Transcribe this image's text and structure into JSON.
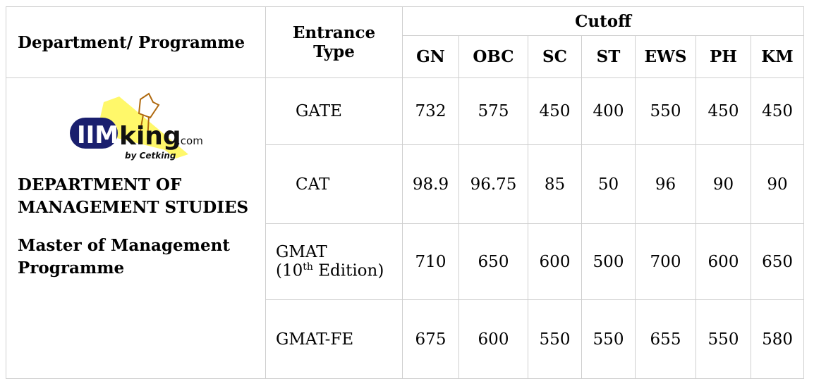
{
  "headers": {
    "department": "Department/ Programme",
    "entrance_type": "Entrance Type",
    "cutoff": "Cutoff",
    "categories": [
      "GN",
      "OBC",
      "SC",
      "ST",
      "EWS",
      "PH",
      "KM"
    ]
  },
  "logo": {
    "brand": "IIMking.com",
    "tagline": "by Cetking",
    "colors": {
      "navy": "#1a1f6e",
      "yellow": "#fff86a",
      "brown": "#b06a10"
    }
  },
  "department": {
    "name": "DEPARTMENT OF MANAGEMENT STUDIES",
    "programme": "Master of Management Programme"
  },
  "rows": [
    {
      "type": "GATE",
      "values": [
        "732",
        "575",
        "450",
        "400",
        "550",
        "450",
        "450"
      ]
    },
    {
      "type": "CAT",
      "values": [
        "98.9",
        "96.75",
        "85",
        "50",
        "96",
        "90",
        "90"
      ]
    },
    {
      "type": "GMAT",
      "type_line2_pre": "(10",
      "type_sup": "th",
      "type_line2_post": " Edition)",
      "values": [
        "710",
        "650",
        "600",
        "500",
        "700",
        "600",
        "650"
      ]
    },
    {
      "type": "GMAT-FE",
      "values": [
        "675",
        "600",
        "550",
        "550",
        "655",
        "550",
        "580"
      ]
    }
  ]
}
